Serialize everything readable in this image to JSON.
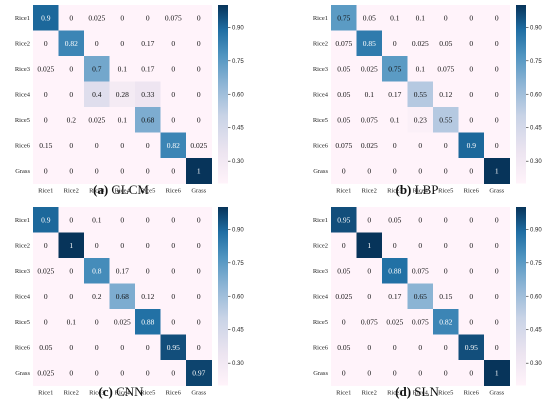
{
  "chart_data": [
    {
      "type": "heatmap",
      "id": "a",
      "caption_letter": "(a)",
      "caption_text": "GLCM",
      "labels": [
        "Rice1",
        "Rice2",
        "Rice3",
        "Rice4",
        "Rice5",
        "Rice6",
        "Grass"
      ],
      "matrix": [
        [
          0.9,
          0,
          0.025,
          0,
          0,
          0.075,
          0
        ],
        [
          0,
          0.82,
          0,
          0,
          0.17,
          0,
          0
        ],
        [
          0.025,
          0,
          0.7,
          0.1,
          0.17,
          0,
          0
        ],
        [
          0,
          0,
          0.4,
          0.28,
          0.33,
          0,
          0
        ],
        [
          0,
          0.2,
          0.025,
          0.1,
          0.68,
          0,
          0
        ],
        [
          0.15,
          0,
          0,
          0,
          0,
          0.82,
          0.025
        ],
        [
          0,
          0,
          0,
          0,
          0,
          0,
          1
        ]
      ],
      "colorbar_ticks": [
        "0.90",
        "0.75",
        "0.60",
        "0.45",
        "0.30"
      ],
      "colorbar_range": [
        0.2,
        1.0
      ]
    },
    {
      "type": "heatmap",
      "id": "b",
      "caption_letter": "(b)",
      "caption_text": "LBP",
      "labels": [
        "Rice1",
        "Rice2",
        "Rice3",
        "Rice4",
        "Rice5",
        "Rice6",
        "Grass"
      ],
      "matrix": [
        [
          0.75,
          0.05,
          0.1,
          0.1,
          0,
          0,
          0
        ],
        [
          0.075,
          0.85,
          0,
          0.025,
          0.05,
          0,
          0
        ],
        [
          0.05,
          0.025,
          0.75,
          0.1,
          0.075,
          0,
          0
        ],
        [
          0.05,
          0.1,
          0.17,
          0.55,
          0.12,
          0,
          0
        ],
        [
          0.05,
          0.075,
          0.1,
          0.23,
          0.55,
          0,
          0
        ],
        [
          0.075,
          0.025,
          0,
          0,
          0,
          0.9,
          0
        ],
        [
          0,
          0,
          0,
          0,
          0,
          0,
          1
        ]
      ],
      "colorbar_ticks": [
        "0.90",
        "0.75",
        "0.60",
        "0.45",
        "0.30"
      ],
      "colorbar_range": [
        0.2,
        1.0
      ]
    },
    {
      "type": "heatmap",
      "id": "c",
      "caption_letter": "(c)",
      "caption_text": "CNN",
      "labels": [
        "Rice1",
        "Rice2",
        "Rice3",
        "Rice4",
        "Rice5",
        "Rice6",
        "Grass"
      ],
      "matrix": [
        [
          0.9,
          0,
          0.1,
          0,
          0,
          0,
          0
        ],
        [
          0,
          1,
          0,
          0,
          0,
          0,
          0
        ],
        [
          0.025,
          0,
          0.8,
          0.17,
          0,
          0,
          0
        ],
        [
          0,
          0,
          0.2,
          0.68,
          0.12,
          0,
          0
        ],
        [
          0,
          0.1,
          0,
          0.025,
          0.88,
          0,
          0
        ],
        [
          0.05,
          0,
          0,
          0,
          0,
          0.95,
          0
        ],
        [
          0.025,
          0,
          0,
          0,
          0,
          0,
          0.97
        ]
      ],
      "colorbar_ticks": [
        "0.90",
        "0.75",
        "0.60",
        "0.45",
        "0.30"
      ],
      "colorbar_range": [
        0.2,
        1.0
      ]
    },
    {
      "type": "heatmap",
      "id": "d",
      "caption_letter": "(d)",
      "caption_text": "SLN",
      "labels": [
        "Rice1",
        "Rice2",
        "Rice3",
        "Rice4",
        "Rice5",
        "Rice6",
        "Grass"
      ],
      "matrix": [
        [
          0.95,
          0,
          0.05,
          0,
          0,
          0,
          0
        ],
        [
          0,
          1,
          0,
          0,
          0,
          0,
          0
        ],
        [
          0.05,
          0,
          0.88,
          0.075,
          0,
          0,
          0
        ],
        [
          0.025,
          0,
          0.17,
          0.65,
          0.15,
          0,
          0
        ],
        [
          0,
          0.075,
          0.025,
          0.075,
          0.82,
          0,
          0
        ],
        [
          0.05,
          0,
          0,
          0,
          0,
          0.95,
          0
        ],
        [
          0,
          0,
          0,
          0,
          0,
          0,
          1
        ]
      ],
      "colorbar_ticks": [
        "0.90",
        "0.75",
        "0.60",
        "0.45",
        "0.30"
      ],
      "colorbar_range": [
        0.2,
        1.0
      ]
    }
  ]
}
